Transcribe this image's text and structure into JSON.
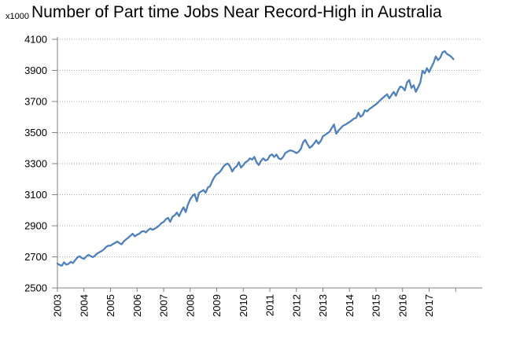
{
  "header": {
    "unit_label": "x1000",
    "title": "Number of Part time Jobs Near Record-High in Australia"
  },
  "chart_data": {
    "type": "line",
    "title": "Number of Part time Jobs Near Record-High in Australia",
    "unit_label": "x1000",
    "xlabel": "",
    "ylabel": "",
    "legend": "none",
    "grid": "horizontal-dotted",
    "ylim": [
      2500,
      4100
    ],
    "y_ticks": [
      2500,
      2700,
      2900,
      3100,
      3300,
      3500,
      3700,
      3900,
      4100
    ],
    "x_tick_labels": [
      "2003",
      "2004",
      "2005",
      "2006",
      "2007",
      "2008",
      "2009",
      "2010",
      "2011",
      "2012",
      "2013",
      "2014",
      "2015",
      "2016",
      "2017"
    ],
    "x_start_year": 2003,
    "points_per_year": 12,
    "line_color": "#4F81BD",
    "gridline_color": "#a6a6a6",
    "axis_color": "#808080",
    "values": [
      2657,
      2648,
      2643,
      2665,
      2650,
      2655,
      2668,
      2660,
      2678,
      2696,
      2704,
      2693,
      2687,
      2702,
      2713,
      2705,
      2698,
      2708,
      2722,
      2730,
      2738,
      2748,
      2764,
      2772,
      2772,
      2782,
      2789,
      2798,
      2788,
      2781,
      2800,
      2812,
      2823,
      2835,
      2849,
      2832,
      2843,
      2849,
      2862,
      2866,
      2857,
      2872,
      2883,
      2874,
      2882,
      2891,
      2902,
      2917,
      2925,
      2942,
      2951,
      2926,
      2958,
      2968,
      2985,
      2962,
      2994,
      3019,
      2988,
      3036,
      3070,
      3092,
      3104,
      3058,
      3112,
      3121,
      3130,
      3113,
      3147,
      3155,
      3189,
      3215,
      3232,
      3240,
      3257,
      3280,
      3295,
      3300,
      3283,
      3249,
      3272,
      3283,
      3309,
      3274,
      3291,
      3309,
      3317,
      3334,
      3326,
      3343,
      3309,
      3291,
      3317,
      3334,
      3320,
      3326,
      3351,
      3360,
      3343,
      3358,
      3334,
      3328,
      3343,
      3368,
      3377,
      3385,
      3383,
      3377,
      3368,
      3377,
      3394,
      3436,
      3453,
      3425,
      3402,
      3412,
      3430,
      3450,
      3428,
      3445,
      3476,
      3485,
      3495,
      3505,
      3530,
      3552,
      3493,
      3512,
      3528,
      3543,
      3550,
      3558,
      3568,
      3578,
      3590,
      3594,
      3628,
      3602,
      3612,
      3644,
      3636,
      3652,
      3661,
      3672,
      3682,
      3695,
      3710,
      3722,
      3735,
      3746,
      3720,
      3742,
      3762,
      3737,
      3772,
      3796,
      3790,
      3771,
      3822,
      3838,
      3787,
      3805,
      3762,
      3790,
      3822,
      3898,
      3881,
      3914,
      3889,
      3920,
      3948,
      3990,
      3966,
      3982,
      4015,
      4024,
      4007,
      3998,
      3988,
      3972
    ]
  }
}
